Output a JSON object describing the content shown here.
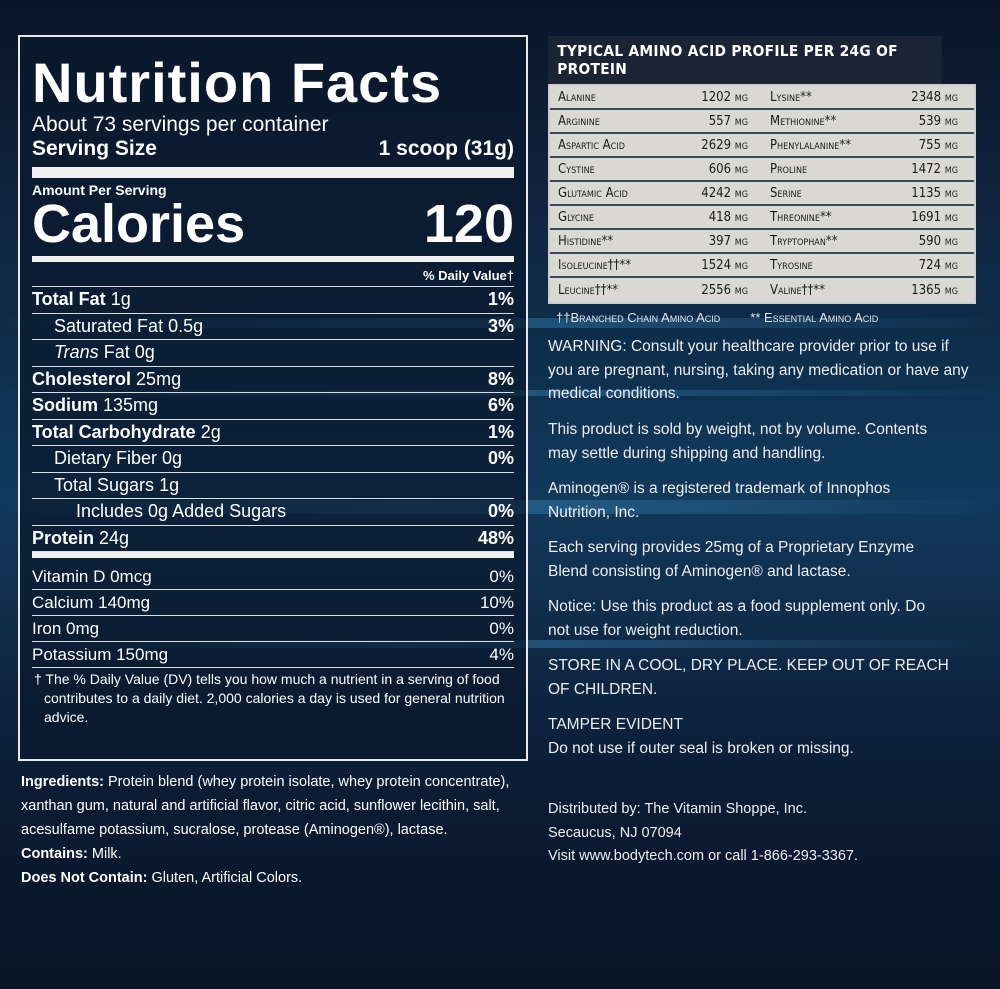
{
  "nutrition": {
    "title": "Nutrition Facts",
    "servings": "About 73 servings per container",
    "serving_size_label": "Serving Size",
    "serving_size": "1 scoop (31g)",
    "amount_per_serving": "Amount Per Serving",
    "calories_label": "Calories",
    "calories": "120",
    "dv_header": "% Daily Value†",
    "nutrients": [
      {
        "name": "Total Fat",
        "amount": "1g",
        "dv": "1%",
        "bold": true,
        "indent": 0
      },
      {
        "name": "Saturated Fat",
        "amount": "0.5g",
        "dv": "3%",
        "bold": false,
        "indent": 1
      },
      {
        "name": "Trans",
        "amount": "Fat 0g",
        "dv": "",
        "bold": false,
        "indent": 1
      },
      {
        "name": "Cholesterol",
        "amount": "25mg",
        "dv": "8%",
        "bold": true,
        "indent": 0
      },
      {
        "name": "Sodium",
        "amount": "135mg",
        "dv": "6%",
        "bold": true,
        "indent": 0
      },
      {
        "name": "Total Carbohydrate",
        "amount": "2g",
        "dv": "1%",
        "bold": true,
        "indent": 0
      },
      {
        "name": "Dietary Fiber",
        "amount": "0g",
        "dv": "0%",
        "bold": false,
        "indent": 1
      },
      {
        "name": "Total Sugars",
        "amount": "1g",
        "dv": "",
        "bold": false,
        "indent": 1
      },
      {
        "name": "Includes 0g Added Sugars",
        "amount": "",
        "dv": "0%",
        "bold": false,
        "indent": 2
      },
      {
        "name": "Protein",
        "amount": "24g",
        "dv": "48%",
        "bold": true,
        "indent": 0
      }
    ],
    "vitamins": [
      {
        "name": "Vitamin D 0mcg",
        "dv": "0%"
      },
      {
        "name": "Calcium 140mg",
        "dv": "10%"
      },
      {
        "name": "Iron 0mg",
        "dv": "0%"
      },
      {
        "name": "Potassium 150mg",
        "dv": "4%"
      }
    ],
    "footnote": "† The % Daily Value (DV) tells you how much a nutrient in a serving of food contributes to a daily diet. 2,000 calories a day is used for general nutrition advice."
  },
  "ingredients": {
    "ingredients_label": "Ingredients:",
    "ingredients_text": " Protein blend (whey protein isolate, whey protein concentrate), xanthan gum, natural and artificial flavor, citric acid, sunflower lecithin, salt, acesulfame potassium, sucralose, protease (Aminogen®), lactase.",
    "contains_label": "Contains:",
    "contains_text": " Milk.",
    "not_contain_label": "Does Not Contain:",
    "not_contain_text": " Gluten, Artificial Colors."
  },
  "amino": {
    "title": "TYPICAL AMINO ACID PROFILE PER 24G OF PROTEIN",
    "rows": [
      [
        "Alanine",
        "1202 mg",
        "Lysine**",
        "2348 mg"
      ],
      [
        "Arginine",
        "557 mg",
        "Methionine**",
        "539 mg"
      ],
      [
        "Aspartic Acid",
        "2629 mg",
        "Phenylalanine**",
        "755 mg"
      ],
      [
        "Cystine",
        "606 mg",
        "Proline",
        "1472 mg"
      ],
      [
        "Glutamic Acid",
        "4242 mg",
        "Serine",
        "1135 mg"
      ],
      [
        "Glycine",
        "418 mg",
        "Threonine**",
        "1691 mg"
      ],
      [
        "Histidine**",
        "397 mg",
        "Tryptophan**",
        "590 mg"
      ],
      [
        "Isoleucine††**",
        "1524 mg",
        "Tyrosine",
        "724 mg"
      ],
      [
        "Leucine††**",
        "2556 mg",
        "Valine††**",
        "1365 mg"
      ]
    ],
    "foot_bcaa": "††Branched Chain Amino Acid",
    "foot_eaa": "** Essential Amino Acid"
  },
  "right_text": [
    "WARNING: Consult your healthcare provider prior to use if you are pregnant, nursing, taking any medication or have any medical conditions.",
    "This product is sold by weight, not by volume. Contents may settle during shipping and handling.",
    "Aminogen® is a registered trademark of Innophos Nutrition, Inc.",
    "Each serving provides 25mg of a Proprietary Enzyme Blend consisting of Aminogen® and lactase.",
    "Notice: Use this product as a food supplement only. Do not use for weight reduction.",
    "STORE IN A COOL, DRY PLACE. KEEP OUT OF REACH OF CHILDREN.",
    "TAMPER EVIDENT\nDo not use if outer seal is broken or missing.",
    "Distributed by: The Vitamin Shoppe, Inc.\nSecaucus, NJ 07094\nVisit www.bodytech.com or call 1-866-293-3367."
  ]
}
